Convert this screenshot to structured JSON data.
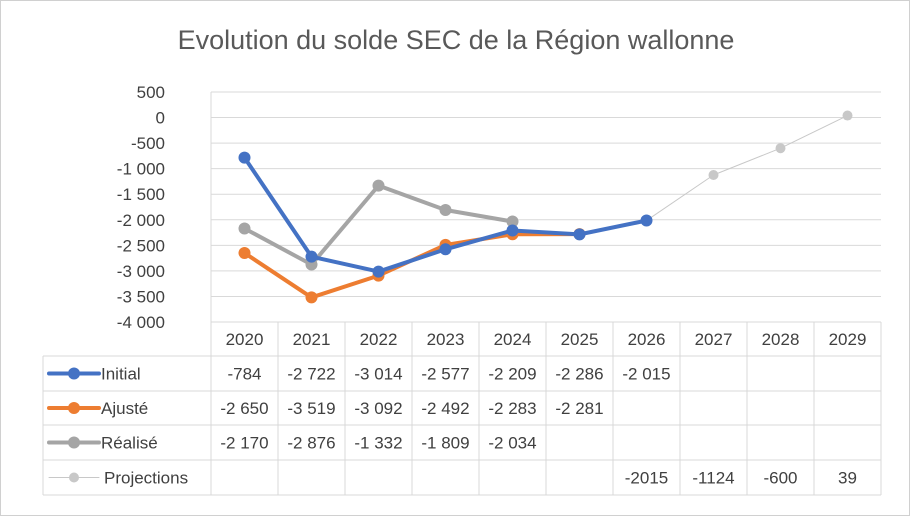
{
  "chart_data": {
    "type": "line",
    "title": "Evolution du solde SEC de la Région wallonne",
    "categories": [
      "2020",
      "2021",
      "2022",
      "2023",
      "2024",
      "2025",
      "2026",
      "2027",
      "2028",
      "2029"
    ],
    "ylim": [
      -4000,
      500
    ],
    "yticks": [
      500,
      0,
      -500,
      -1000,
      -1500,
      -2000,
      -2500,
      -3000,
      -3500,
      -4000
    ],
    "ytick_labels": [
      "500",
      "0",
      "-500",
      "-1 000",
      "-1 500",
      "-2 000",
      "-2 500",
      "-3 000",
      "-3 500",
      "-4 000"
    ],
    "grid": true,
    "legend": "data-table",
    "series": [
      {
        "name": "Initial",
        "color": "#4472C4",
        "values": [
          -784,
          -2722,
          -3014,
          -2577,
          -2209,
          -2286,
          -2015,
          null,
          null,
          null
        ],
        "labels": [
          "-784",
          "-2 722",
          "-3 014",
          "-2 577",
          "-2 209",
          "-2 286",
          "-2 015",
          "",
          "",
          ""
        ]
      },
      {
        "name": "Ajusté",
        "color": "#ED7D31",
        "values": [
          -2650,
          -3519,
          -3092,
          -2492,
          -2283,
          -2281,
          null,
          null,
          null,
          null
        ],
        "labels": [
          "-2 650",
          "-3 519",
          "-3 092",
          "-2 492",
          "-2 283",
          "-2 281",
          "",
          "",
          "",
          ""
        ]
      },
      {
        "name": "Réalisé",
        "color": "#A5A5A5",
        "values": [
          -2170,
          -2876,
          -1332,
          -1809,
          -2034,
          null,
          null,
          null,
          null,
          null
        ],
        "labels": [
          "-2 170",
          "-2 876",
          "-1 332",
          "-1 809",
          "-2 034",
          "",
          "",
          "",
          "",
          ""
        ]
      },
      {
        "name": "Projections",
        "color": "#C8C8C8",
        "values": [
          null,
          null,
          null,
          null,
          null,
          null,
          -2015,
          -1124,
          -600,
          39
        ],
        "labels": [
          "",
          "",
          "",
          "",
          "",
          "",
          "-2015",
          "-1124",
          "-600",
          "39"
        ]
      }
    ]
  }
}
